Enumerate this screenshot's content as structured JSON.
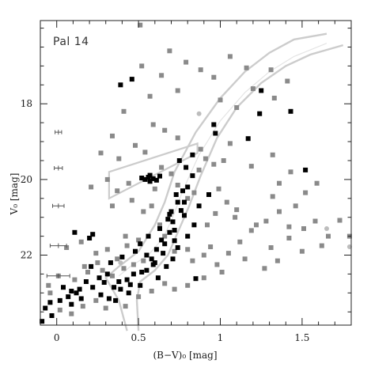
{
  "chart_data": {
    "type": "scatter",
    "title": "Pal 14",
    "xlabel": "(B−V)₀ [mag]",
    "ylabel": "V₀ [mag]",
    "xlim": [
      -0.1,
      1.8
    ],
    "ylim": [
      23.85,
      15.8
    ],
    "y_inverted": true,
    "x_ticks": [
      0,
      0.5,
      1,
      1.5
    ],
    "x_tick_labels": [
      "0",
      "0.5",
      "1",
      "1.5"
    ],
    "y_ticks": [
      18,
      20,
      22
    ],
    "y_tick_labels": [
      "18",
      "20",
      "22"
    ],
    "grid": false,
    "legend": "none",
    "colors": {
      "members": "#000000",
      "field": "#8a8a8a",
      "envelope": "#cccccc",
      "errorbars": "#555555"
    },
    "series": [
      {
        "name": "",
        "color": "black",
        "points": [
          [
            0.39,
            17.5
          ],
          [
            0.57,
            20.05
          ],
          [
            0.46,
            17.35
          ],
          [
            1.43,
            18.2
          ],
          [
            1.25,
            17.65
          ],
          [
            0.96,
            18.55
          ],
          [
            0.97,
            18.78
          ],
          [
            0.79,
            19.68
          ],
          [
            0.83,
            19.35
          ],
          [
            1.17,
            18.92
          ],
          [
            1.24,
            18.26
          ],
          [
            1.52,
            19.75
          ],
          [
            0.11,
            21.4
          ],
          [
            0.22,
            21.45
          ],
          [
            0.2,
            21.55
          ],
          [
            0.56,
            19.94
          ],
          [
            0.59,
            19.98
          ],
          [
            0.52,
            19.96
          ],
          [
            0.54,
            20.0
          ],
          [
            0.61,
            20.02
          ],
          [
            0.57,
            19.89
          ],
          [
            0.63,
            19.91
          ],
          [
            0.75,
            19.5
          ],
          [
            0.8,
            20.2
          ],
          [
            0.78,
            20.6
          ],
          [
            0.71,
            21.12
          ],
          [
            0.72,
            21.34
          ],
          [
            0.69,
            20.92
          ],
          [
            0.76,
            20.82
          ],
          [
            0.66,
            21.7
          ],
          [
            0.72,
            21.62
          ],
          [
            0.61,
            21.85
          ],
          [
            0.65,
            21.95
          ],
          [
            0.58,
            22.1
          ],
          [
            0.59,
            22.25
          ],
          [
            0.55,
            22.0
          ],
          [
            0.52,
            22.45
          ],
          [
            0.47,
            22.5
          ],
          [
            0.43,
            22.65
          ],
          [
            0.38,
            22.7
          ],
          [
            0.29,
            22.72
          ],
          [
            0.22,
            22.85
          ],
          [
            0.14,
            22.9
          ],
          [
            0.09,
            22.95
          ],
          [
            0.07,
            23.1
          ],
          [
            0.02,
            23.2
          ],
          [
            -0.04,
            23.25
          ],
          [
            -0.07,
            23.4
          ],
          [
            -0.03,
            23.6
          ],
          [
            -0.09,
            23.75
          ],
          [
            0.26,
            22.6
          ],
          [
            0.31,
            22.5
          ],
          [
            0.35,
            22.85
          ],
          [
            0.45,
            22.78
          ],
          [
            0.62,
            22.6
          ],
          [
            0.67,
            22.3
          ],
          [
            0.71,
            22.1
          ],
          [
            0.74,
            21.8
          ],
          [
            0.8,
            21.5
          ],
          [
            0.84,
            21.2
          ],
          [
            0.87,
            20.7
          ],
          [
            0.93,
            20.4
          ],
          [
            0.21,
            22.3
          ],
          [
            0.33,
            22.2
          ],
          [
            0.4,
            22.05
          ],
          [
            0.48,
            21.9
          ],
          [
            0.51,
            21.7
          ],
          [
            0.56,
            21.5
          ],
          [
            0.63,
            21.3
          ],
          [
            0.68,
            21.05
          ],
          [
            0.73,
            20.4
          ],
          [
            0.78,
            20.95
          ],
          [
            0.83,
            19.9
          ],
          [
            0.85,
            22.62
          ],
          [
            0.12,
            23.0
          ],
          [
            0.18,
            22.7
          ],
          [
            0.27,
            23.05
          ],
          [
            0.32,
            23.15
          ],
          [
            0.39,
            22.9
          ],
          [
            0.44,
            23.0
          ],
          [
            0.51,
            22.8
          ],
          [
            0.55,
            22.4
          ],
          [
            0.6,
            22.2
          ],
          [
            0.64,
            21.6
          ],
          [
            0.69,
            21.4
          ],
          [
            0.7,
            20.85
          ],
          [
            0.74,
            20.6
          ],
          [
            0.77,
            20.3
          ],
          [
            0.36,
            23.2
          ],
          [
            0.09,
            23.3
          ],
          [
            0.04,
            22.85
          ],
          [
            0.15,
            23.15
          ]
        ]
      },
      {
        "name": "",
        "color": "grey",
        "points": [
          [
            0.51,
            15.92
          ],
          [
            0.64,
            17.25
          ],
          [
            0.52,
            17.0
          ],
          [
            0.69,
            16.6
          ],
          [
            0.79,
            16.9
          ],
          [
            0.88,
            17.1
          ],
          [
            0.74,
            17.65
          ],
          [
            0.96,
            17.3
          ],
          [
            1.06,
            16.75
          ],
          [
            1.0,
            17.9
          ],
          [
            1.1,
            18.1
          ],
          [
            1.16,
            17.05
          ],
          [
            1.31,
            17.1
          ],
          [
            1.41,
            17.4
          ],
          [
            1.33,
            17.85
          ],
          [
            1.2,
            17.6
          ],
          [
            0.41,
            18.2
          ],
          [
            0.59,
            18.55
          ],
          [
            0.57,
            17.8
          ],
          [
            0.34,
            18.85
          ],
          [
            0.48,
            19.1
          ],
          [
            0.27,
            19.3
          ],
          [
            0.38,
            19.45
          ],
          [
            0.54,
            19.28
          ],
          [
            0.66,
            18.7
          ],
          [
            0.74,
            18.9
          ],
          [
            0.88,
            19.2
          ],
          [
            1.06,
            19.05
          ],
          [
            1.02,
            19.5
          ],
          [
            1.19,
            19.65
          ],
          [
            1.32,
            19.35
          ],
          [
            1.43,
            19.8
          ],
          [
            1.36,
            20.1
          ],
          [
            1.59,
            20.1
          ],
          [
            1.52,
            20.35
          ],
          [
            1.32,
            20.45
          ],
          [
            1.46,
            20.7
          ],
          [
            1.36,
            20.85
          ],
          [
            1.28,
            21.1
          ],
          [
            1.19,
            21.35
          ],
          [
            1.1,
            20.8
          ],
          [
            1.09,
            21.0
          ],
          [
            1.22,
            21.2
          ],
          [
            1.42,
            21.25
          ],
          [
            1.51,
            21.3
          ],
          [
            1.58,
            21.1
          ],
          [
            1.66,
            21.5
          ],
          [
            1.79,
            21.5
          ],
          [
            1.73,
            21.08
          ],
          [
            1.62,
            21.75
          ],
          [
            1.5,
            21.9
          ],
          [
            1.42,
            21.55
          ],
          [
            1.31,
            21.8
          ],
          [
            1.12,
            21.65
          ],
          [
            1.05,
            21.95
          ],
          [
            0.94,
            21.78
          ],
          [
            0.9,
            22.0
          ],
          [
            0.98,
            22.25
          ],
          [
            1.15,
            22.1
          ],
          [
            1.27,
            22.35
          ],
          [
            1.35,
            22.15
          ],
          [
            0.8,
            22.8
          ],
          [
            0.9,
            22.6
          ],
          [
            1.01,
            22.45
          ],
          [
            0.31,
            20.0
          ],
          [
            0.21,
            20.2
          ],
          [
            0.37,
            20.3
          ],
          [
            0.46,
            20.55
          ],
          [
            0.34,
            20.7
          ],
          [
            0.53,
            20.85
          ],
          [
            0.06,
            21.8
          ],
          [
            0.15,
            21.65
          ],
          [
            0.24,
            21.95
          ],
          [
            0.31,
            21.85
          ],
          [
            0.42,
            21.5
          ],
          [
            0.5,
            21.6
          ],
          [
            -0.05,
            22.8
          ],
          [
            0.01,
            22.55
          ],
          [
            0.11,
            22.65
          ],
          [
            0.19,
            22.45
          ],
          [
            0.28,
            22.4
          ],
          [
            0.34,
            22.55
          ],
          [
            0.41,
            22.35
          ],
          [
            0.47,
            22.25
          ],
          [
            0.58,
            22.95
          ],
          [
            0.66,
            22.75
          ],
          [
            0.72,
            22.9
          ],
          [
            0.09,
            23.55
          ],
          [
            0.02,
            23.45
          ],
          [
            -0.04,
            23.0
          ],
          [
            0.16,
            23.35
          ],
          [
            0.24,
            23.2
          ],
          [
            0.3,
            23.4
          ],
          [
            0.42,
            23.35
          ],
          [
            0.5,
            23.1
          ],
          [
            0.6,
            20.25
          ],
          [
            0.64,
            19.68
          ],
          [
            0.7,
            19.85
          ],
          [
            0.74,
            20.15
          ],
          [
            0.8,
            20.5
          ],
          [
            0.84,
            20.35
          ],
          [
            0.87,
            19.75
          ],
          [
            0.91,
            19.45
          ],
          [
            0.96,
            19.6
          ],
          [
            0.58,
            20.7
          ],
          [
            0.63,
            21.2
          ],
          [
            0.66,
            21.5
          ],
          [
            0.72,
            21.9
          ],
          [
            0.8,
            21.85
          ],
          [
            0.83,
            22.15
          ],
          [
            0.53,
            22.15
          ],
          [
            0.43,
            21.75
          ],
          [
            0.37,
            22.1
          ],
          [
            0.25,
            22.2
          ],
          [
            0.17,
            22.3
          ],
          [
            0.44,
            20.1
          ],
          [
            0.92,
            21.2
          ],
          [
            0.97,
            20.9
          ],
          [
            1.04,
            20.6
          ],
          [
            0.99,
            20.25
          ]
        ]
      },
      {
        "name": "",
        "color": "light grey",
        "points": [
          [
            0.87,
            18.26
          ],
          [
            1.65,
            21.3
          ],
          [
            1.79,
            21.78
          ],
          [
            0.39,
            22.2
          ]
        ]
      }
    ],
    "isochrone_left_edge": [
      [
        1.65,
        16.15
      ],
      [
        1.45,
        16.3
      ],
      [
        1.3,
        16.65
      ],
      [
        1.15,
        17.15
      ],
      [
        1.0,
        17.85
      ],
      [
        0.85,
        18.75
      ],
      [
        0.72,
        19.8
      ],
      [
        0.66,
        20.6
      ],
      [
        0.6,
        21.2
      ],
      [
        0.5,
        21.9
      ],
      [
        0.38,
        22.3
      ],
      [
        0.3,
        22.6
      ],
      [
        0.38,
        23.2
      ],
      [
        0.43,
        24.0
      ]
    ],
    "isochrone_right_edge": [
      [
        1.75,
        16.45
      ],
      [
        1.55,
        16.7
      ],
      [
        1.4,
        17.0
      ],
      [
        1.25,
        17.45
      ],
      [
        1.1,
        18.1
      ],
      [
        0.98,
        18.9
      ],
      [
        0.88,
        19.9
      ],
      [
        0.81,
        20.7
      ],
      [
        0.74,
        21.4
      ],
      [
        0.68,
        22.0
      ],
      [
        0.6,
        22.4
      ],
      [
        0.51,
        22.7
      ],
      [
        0.49,
        23.2
      ],
      [
        0.5,
        24.0
      ]
    ],
    "isochrone_center": [
      [
        1.65,
        16.4
      ],
      [
        1.45,
        16.75
      ],
      [
        1.3,
        17.15
      ],
      [
        1.15,
        17.7
      ],
      [
        1.0,
        18.45
      ],
      [
        0.87,
        19.35
      ],
      [
        0.77,
        20.3
      ],
      [
        0.71,
        21.0
      ],
      [
        0.65,
        21.55
      ],
      [
        0.56,
        22.0
      ],
      [
        0.45,
        22.3
      ],
      [
        0.38,
        22.55
      ]
    ],
    "hb_box": [
      [
        0.32,
        20.5
      ],
      [
        0.86,
        19.3
      ],
      [
        0.86,
        19.05
      ],
      [
        0.32,
        19.8
      ]
    ],
    "error_bars": [
      {
        "x": 0.01,
        "y": 18.75,
        "xerr": 0.02
      },
      {
        "x": 0.01,
        "y": 19.7,
        "xerr": 0.025
      },
      {
        "x": 0.01,
        "y": 20.7,
        "xerr": 0.035
      },
      {
        "x": 0.01,
        "y": 21.75,
        "xerr": 0.05
      },
      {
        "x": 0.01,
        "y": 22.55,
        "xerr": 0.07
      }
    ]
  }
}
